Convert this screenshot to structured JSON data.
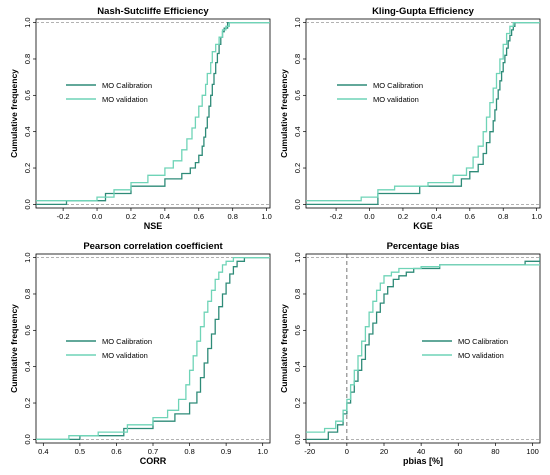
{
  "chart_data": [
    {
      "type": "line",
      "title": "Nash-Sutcliffe Efficiency",
      "xlabel": "NSE",
      "ylabel": "Cumulative frequency",
      "xlim": [
        -0.36,
        1.02
      ],
      "ylim": [
        -0.02,
        1.02
      ],
      "xticks": [
        -0.2,
        0.0,
        0.2,
        0.4,
        0.6,
        0.8,
        1.0
      ],
      "xtick_labels": [
        "-0.2",
        "0.0",
        "0.2",
        "0.4",
        "0.6",
        "0.8",
        "1.0"
      ],
      "yticks": [
        0.0,
        0.2,
        0.4,
        0.6,
        0.8,
        1.0
      ],
      "ytick_labels": [
        "0.0",
        "0.2",
        "0.4",
        "0.6",
        "0.8",
        "1.0"
      ],
      "reference_lines": {
        "y": [
          0,
          1
        ],
        "style": "dashed"
      },
      "legend_position": "center-left",
      "grid": false,
      "series": [
        {
          "name": "MO Calibration",
          "color": "#2e8b78",
          "x": [
            -0.36,
            -0.18,
            0.05,
            0.2,
            0.4,
            0.5,
            0.55,
            0.58,
            0.6,
            0.62,
            0.63,
            0.64,
            0.65,
            0.66,
            0.67,
            0.68,
            0.69,
            0.7,
            0.71,
            0.72,
            0.73,
            0.74,
            0.75,
            0.77,
            0.8,
            1.02
          ],
          "y": [
            0.0,
            0.02,
            0.06,
            0.1,
            0.14,
            0.17,
            0.2,
            0.23,
            0.27,
            0.32,
            0.37,
            0.42,
            0.48,
            0.54,
            0.6,
            0.66,
            0.72,
            0.78,
            0.83,
            0.88,
            0.92,
            0.95,
            0.97,
            1.0,
            1.0,
            1.0
          ]
        },
        {
          "name": "MO validation",
          "color": "#6fd4b7",
          "x": [
            -0.36,
            0.0,
            0.1,
            0.2,
            0.3,
            0.4,
            0.45,
            0.5,
            0.53,
            0.56,
            0.58,
            0.6,
            0.62,
            0.64,
            0.65,
            0.67,
            0.68,
            0.7,
            0.72,
            0.74,
            0.76,
            0.78,
            1.02
          ],
          "y": [
            0.02,
            0.04,
            0.08,
            0.12,
            0.16,
            0.2,
            0.24,
            0.3,
            0.36,
            0.42,
            0.48,
            0.54,
            0.6,
            0.66,
            0.72,
            0.78,
            0.84,
            0.88,
            0.92,
            0.96,
            0.98,
            1.0,
            1.0
          ]
        }
      ]
    },
    {
      "type": "line",
      "title": "Kling-Gupta Efficiency",
      "xlabel": "KGE",
      "ylabel": "Cumulative frequency",
      "xlim": [
        -0.38,
        1.02
      ],
      "ylim": [
        -0.02,
        1.02
      ],
      "xticks": [
        -0.2,
        0.0,
        0.2,
        0.4,
        0.6,
        0.8,
        1.0
      ],
      "xtick_labels": [
        "-0.2",
        "0.0",
        "0.2",
        "0.4",
        "0.6",
        "0.8",
        "1.0"
      ],
      "yticks": [
        0.0,
        0.2,
        0.4,
        0.6,
        0.8,
        1.0
      ],
      "ytick_labels": [
        "0.0",
        "0.2",
        "0.4",
        "0.6",
        "0.8",
        "1.0"
      ],
      "reference_lines": {
        "y": [
          0,
          1
        ],
        "style": "dashed"
      },
      "legend_position": "center-right",
      "grid": false,
      "series": [
        {
          "name": "MO Calibration",
          "color": "#2e8b78",
          "x": [
            -0.38,
            0.05,
            0.3,
            0.55,
            0.6,
            0.65,
            0.68,
            0.7,
            0.72,
            0.74,
            0.75,
            0.76,
            0.77,
            0.78,
            0.79,
            0.8,
            0.81,
            0.82,
            0.83,
            0.84,
            0.85,
            0.86,
            0.87,
            0.88,
            1.02
          ],
          "y": [
            0.0,
            0.06,
            0.1,
            0.14,
            0.18,
            0.22,
            0.28,
            0.34,
            0.4,
            0.46,
            0.52,
            0.58,
            0.63,
            0.68,
            0.73,
            0.78,
            0.82,
            0.86,
            0.9,
            0.93,
            0.96,
            0.98,
            1.0,
            1.0,
            1.0
          ]
        },
        {
          "name": "MO validation",
          "color": "#6fd4b7",
          "x": [
            -0.38,
            -0.05,
            0.05,
            0.15,
            0.35,
            0.5,
            0.58,
            0.62,
            0.65,
            0.68,
            0.7,
            0.72,
            0.74,
            0.76,
            0.78,
            0.8,
            0.82,
            0.84,
            0.86,
            1.02
          ],
          "y": [
            0.02,
            0.04,
            0.08,
            0.1,
            0.12,
            0.16,
            0.2,
            0.26,
            0.32,
            0.4,
            0.48,
            0.56,
            0.64,
            0.72,
            0.8,
            0.88,
            0.94,
            0.98,
            1.0,
            1.0
          ]
        }
      ]
    },
    {
      "type": "line",
      "title": "Pearson correlation coefficient",
      "xlabel": "CORR",
      "ylabel": "Cumulative frequency",
      "xlim": [
        0.38,
        1.02
      ],
      "ylim": [
        -0.02,
        1.02
      ],
      "xticks": [
        0.4,
        0.5,
        0.6,
        0.7,
        0.8,
        0.9,
        1.0
      ],
      "xtick_labels": [
        "0.4",
        "0.5",
        "0.6",
        "0.7",
        "0.8",
        "0.9",
        "1.0"
      ],
      "yticks": [
        0.0,
        0.2,
        0.4,
        0.6,
        0.8,
        1.0
      ],
      "ytick_labels": [
        "0.0",
        "0.2",
        "0.4",
        "0.6",
        "0.8",
        "1.0"
      ],
      "reference_lines": {
        "y": [
          0,
          1
        ],
        "style": "dashed"
      },
      "legend_position": "center-left",
      "grid": false,
      "series": [
        {
          "name": "MO Calibration",
          "color": "#2e8b78",
          "x": [
            0.38,
            0.5,
            0.62,
            0.7,
            0.76,
            0.8,
            0.82,
            0.83,
            0.84,
            0.85,
            0.86,
            0.87,
            0.88,
            0.89,
            0.9,
            0.91,
            0.92,
            0.93,
            0.95,
            1.02
          ],
          "y": [
            0.0,
            0.02,
            0.06,
            0.1,
            0.14,
            0.2,
            0.26,
            0.34,
            0.42,
            0.5,
            0.58,
            0.66,
            0.73,
            0.8,
            0.86,
            0.91,
            0.95,
            0.98,
            1.0,
            1.0
          ]
        },
        {
          "name": "MO validation",
          "color": "#6fd4b7",
          "x": [
            0.38,
            0.47,
            0.55,
            0.63,
            0.7,
            0.74,
            0.77,
            0.79,
            0.8,
            0.81,
            0.82,
            0.83,
            0.84,
            0.85,
            0.86,
            0.87,
            0.88,
            0.89,
            0.9,
            0.92,
            1.02
          ],
          "y": [
            0.0,
            0.02,
            0.04,
            0.08,
            0.12,
            0.16,
            0.22,
            0.3,
            0.38,
            0.46,
            0.54,
            0.62,
            0.7,
            0.76,
            0.82,
            0.88,
            0.92,
            0.96,
            0.98,
            1.0,
            1.0
          ]
        }
      ]
    },
    {
      "type": "line",
      "title": "Percentage bias",
      "xlabel": "pbias [%]",
      "ylabel": "Cumulative frequency",
      "xlim": [
        -22,
        104
      ],
      "ylim": [
        -0.02,
        1.02
      ],
      "xticks": [
        -20,
        0,
        20,
        40,
        60,
        80,
        100
      ],
      "xtick_labels": [
        "-20",
        "0",
        "20",
        "40",
        "60",
        "80",
        "100"
      ],
      "yticks": [
        0.0,
        0.2,
        0.4,
        0.6,
        0.8,
        1.0
      ],
      "ytick_labels": [
        "0.0",
        "0.2",
        "0.4",
        "0.6",
        "0.8",
        "1.0"
      ],
      "reference_lines": {
        "y": [
          0,
          1
        ],
        "x": [
          0
        ],
        "style": "dashed"
      },
      "legend_position": "center-right",
      "grid": false,
      "series": [
        {
          "name": "MO Calibration",
          "color": "#2e8b78",
          "x": [
            -22,
            -10,
            -5,
            -2,
            0,
            2,
            4,
            6,
            8,
            10,
            12,
            14,
            16,
            18,
            20,
            22,
            25,
            28,
            32,
            36,
            40,
            50,
            96,
            104
          ],
          "y": [
            0.0,
            0.04,
            0.08,
            0.14,
            0.2,
            0.26,
            0.32,
            0.38,
            0.44,
            0.52,
            0.58,
            0.64,
            0.7,
            0.75,
            0.8,
            0.84,
            0.88,
            0.9,
            0.92,
            0.94,
            0.94,
            0.96,
            0.98,
            1.0
          ]
        },
        {
          "name": "MO validation",
          "color": "#6fd4b7",
          "x": [
            -22,
            -12,
            -6,
            -2,
            0,
            2,
            4,
            6,
            8,
            10,
            12,
            14,
            16,
            18,
            20,
            24,
            28,
            32,
            40,
            50,
            96,
            104
          ],
          "y": [
            0.04,
            0.06,
            0.1,
            0.16,
            0.22,
            0.3,
            0.38,
            0.46,
            0.54,
            0.62,
            0.7,
            0.76,
            0.82,
            0.86,
            0.9,
            0.92,
            0.94,
            0.94,
            0.95,
            0.96,
            0.96,
            0.96
          ]
        }
      ]
    }
  ]
}
